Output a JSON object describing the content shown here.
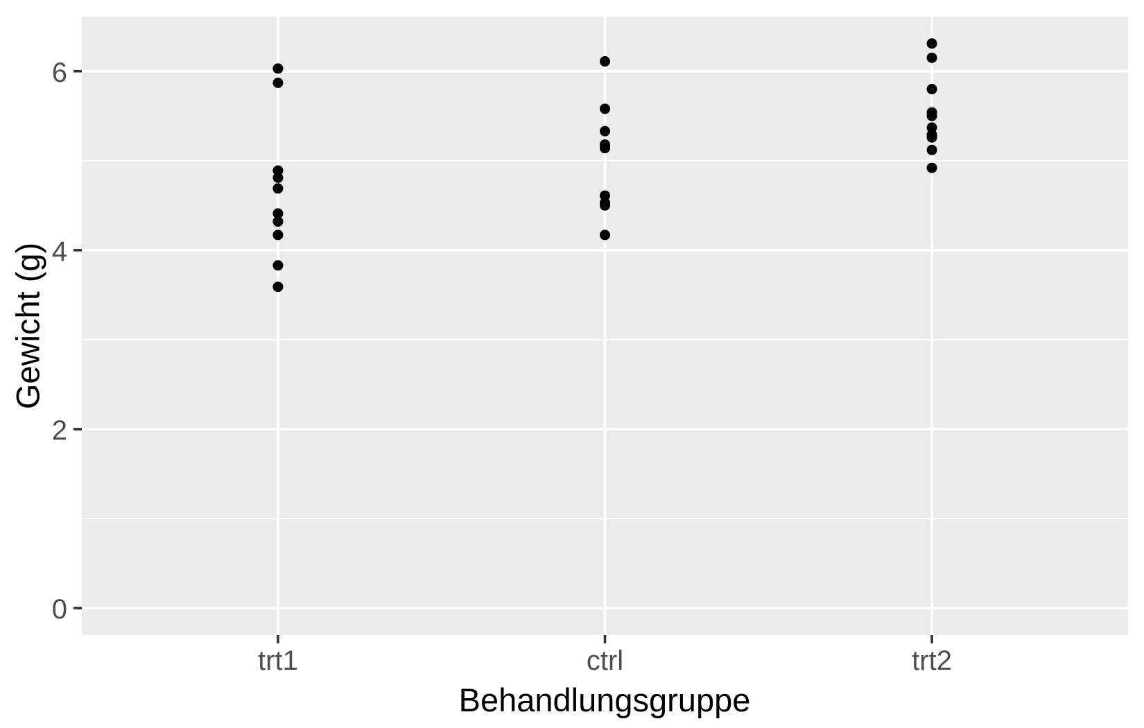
{
  "chart_data": {
    "type": "scatter",
    "title": "",
    "xlabel": "Behandlungsgruppe",
    "ylabel": "Gewicht (g)",
    "categories": [
      "trt1",
      "ctrl",
      "trt2"
    ],
    "series": [
      {
        "name": "trt1",
        "values": [
          6.03,
          5.87,
          4.89,
          4.81,
          4.69,
          4.41,
          4.32,
          4.17,
          3.83,
          3.59
        ]
      },
      {
        "name": "ctrl",
        "values": [
          6.11,
          5.58,
          5.33,
          5.18,
          5.17,
          5.14,
          4.61,
          4.53,
          4.5,
          4.17
        ]
      },
      {
        "name": "trt2",
        "values": [
          6.31,
          6.15,
          5.8,
          5.54,
          5.5,
          5.37,
          5.29,
          5.26,
          5.12,
          4.92
        ]
      }
    ],
    "y_axis": {
      "ticks": [
        0,
        2,
        4,
        6
      ],
      "tick_labels": [
        "0",
        "2",
        "4",
        "6"
      ],
      "minor_ticks": [
        1,
        3,
        5
      ],
      "range": [
        -0.302,
        6.61
      ]
    },
    "x_axis": {
      "tick_labels": [
        "trt1",
        "ctrl",
        "trt2"
      ]
    },
    "legend": "none",
    "grid": true,
    "colors": {
      "point": "#000000",
      "panel_background": "#EBEBEB",
      "grid_line": "#FFFFFF",
      "tick_mark": "#333333",
      "tick_label": "#4D4D4D",
      "axis_title": "#000000",
      "figure_background": "#FFFFFF"
    }
  }
}
